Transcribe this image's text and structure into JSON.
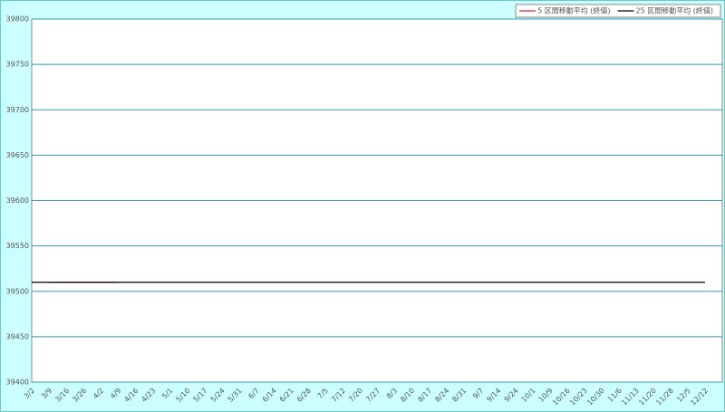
{
  "chart_data": {
    "type": "line",
    "categories": [
      "3/2",
      "3/9",
      "3/16",
      "3/26",
      "4/2",
      "4/9",
      "4/16",
      "4/23",
      "5/1",
      "5/10",
      "5/17",
      "5/24",
      "5/31",
      "6/7",
      "6/14",
      "6/21",
      "6/28",
      "7/5",
      "7/12",
      "7/20",
      "7/27",
      "8/3",
      "8/10",
      "8/17",
      "8/24",
      "8/31",
      "9/7",
      "9/14",
      "9/24",
      "10/1",
      "10/9",
      "10/16",
      "10/23",
      "10/30",
      "11/6",
      "11/13",
      "11/20",
      "11/28",
      "12/5",
      "12/12"
    ],
    "series": [
      {
        "name": "5 区間移動平均 (終値)",
        "color": "#e02020",
        "values": [
          null,
          39510,
          39510,
          39510,
          39510,
          39510,
          null,
          null,
          null,
          null,
          null,
          null,
          null,
          null,
          null,
          null,
          null,
          null,
          null,
          null,
          null,
          null,
          null,
          null,
          null,
          null,
          null,
          null,
          null,
          null,
          null,
          null,
          null,
          null,
          null,
          null,
          null,
          null,
          null,
          null
        ]
      },
      {
        "name": "25 区間移動平均 (終値)",
        "color": "#000000",
        "values": [
          39510,
          39510,
          39510,
          39510,
          39510,
          39510,
          39510,
          39510,
          39510,
          39510,
          39510,
          39510,
          39510,
          39510,
          39510,
          39510,
          39510,
          39510,
          39510,
          39510,
          39510,
          39510,
          39510,
          39510,
          39510,
          39510,
          39510,
          39510,
          39510,
          39510,
          39510,
          39510,
          39510,
          39510,
          39510,
          39510,
          39510,
          39510,
          39510,
          39510
        ]
      }
    ],
    "ylim": [
      39400,
      39800
    ],
    "yticks": [
      39400,
      39450,
      39500,
      39550,
      39600,
      39650,
      39700,
      39750,
      39800
    ],
    "grid": true,
    "legend": "top-right"
  }
}
